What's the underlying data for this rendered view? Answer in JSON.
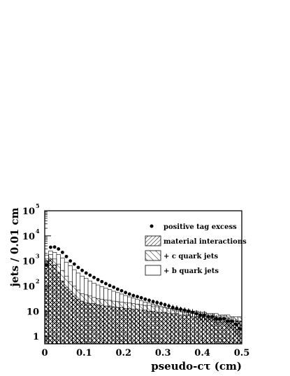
{
  "chart_data": {
    "type": "bar",
    "xlabel": "pseudo-cτ (cm)",
    "ylabel": "jets / 0.01 cm",
    "xlim": [
      0,
      0.5
    ],
    "ylim": [
      0.5,
      100000
    ],
    "y_scale": "log",
    "grid": false,
    "legend_position": "top-right",
    "x_ticks": [
      0,
      0.1,
      0.2,
      0.3,
      0.4,
      0.5
    ],
    "y_ticks": [
      1,
      10,
      100,
      1000,
      10000,
      100000
    ],
    "y_tick_labels": [
      {
        "base": "1",
        "exp": ""
      },
      {
        "base": "10",
        "exp": ""
      },
      {
        "base": "10",
        "exp": "2"
      },
      {
        "base": "10",
        "exp": "3"
      },
      {
        "base": "10",
        "exp": "4"
      },
      {
        "base": "10",
        "exp": "5"
      }
    ],
    "bin_width": 0.01,
    "bins_low_edge": [
      0.0,
      0.01,
      0.02,
      0.03,
      0.04,
      0.05,
      0.06,
      0.07,
      0.08,
      0.09,
      0.1,
      0.11,
      0.12,
      0.13,
      0.14,
      0.15,
      0.16,
      0.17,
      0.18,
      0.19,
      0.2,
      0.21,
      0.22,
      0.23,
      0.24,
      0.25,
      0.26,
      0.27,
      0.28,
      0.29,
      0.3,
      0.31,
      0.32,
      0.33,
      0.34,
      0.35,
      0.36,
      0.37,
      0.38,
      0.39,
      0.4,
      0.41,
      0.42,
      0.43,
      0.44,
      0.45,
      0.46,
      0.47,
      0.48,
      0.49
    ],
    "series": [
      {
        "name": "material interactions",
        "style": "hatch-dense",
        "values": [
          1000,
          1200,
          700,
          350,
          160,
          90,
          60,
          40,
          30,
          25,
          22,
          20,
          20,
          18,
          17,
          16,
          16,
          15,
          14,
          14,
          13,
          13,
          12,
          12,
          11,
          11,
          10,
          10,
          9,
          9,
          9,
          8,
          8,
          8,
          7,
          7,
          7,
          6,
          6,
          6,
          6,
          5,
          5,
          5,
          5,
          4,
          4,
          4,
          4,
          4
        ]
      },
      {
        "name": "+ c quark jets",
        "style": "hatch-sparse",
        "values": [
          1200,
          1800,
          1200,
          750,
          420,
          250,
          150,
          100,
          70,
          50,
          45,
          40,
          35,
          32,
          30,
          28,
          27,
          25,
          24,
          23,
          22,
          21,
          20,
          19,
          18,
          17,
          17,
          16,
          15,
          15,
          14,
          13,
          13,
          12,
          12,
          11,
          11,
          10,
          10,
          9,
          9,
          8,
          8,
          8,
          7,
          7,
          7,
          6,
          6,
          6
        ]
      },
      {
        "name": "+ b quark jets",
        "style": "open",
        "values": [
          1700,
          2500,
          2200,
          1800,
          1300,
          900,
          650,
          450,
          330,
          250,
          200,
          160,
          130,
          110,
          95,
          82,
          72,
          62,
          55,
          48,
          42,
          37,
          33,
          29,
          26,
          23,
          21,
          19,
          17,
          15,
          14,
          13,
          12,
          11,
          10,
          9,
          9,
          8,
          8,
          7,
          7,
          6,
          6,
          6,
          5,
          5,
          5,
          4,
          4,
          4
        ]
      },
      {
        "name": "positive tag excess",
        "style": "points",
        "values": [
          700,
          3500,
          3600,
          3000,
          2200,
          1500,
          1000,
          750,
          550,
          420,
          330,
          270,
          220,
          180,
          150,
          125,
          105,
          90,
          75,
          65,
          55,
          48,
          42,
          38,
          34,
          30,
          27,
          24,
          22,
          20,
          18,
          16,
          14,
          13,
          12,
          11,
          10,
          9,
          8,
          7,
          7,
          6,
          6,
          5,
          5,
          5,
          4,
          4,
          3,
          2
        ],
        "errors": [
          30,
          60,
          60,
          55,
          45,
          40,
          30,
          28,
          23,
          20,
          18,
          16,
          15,
          13,
          12,
          11,
          10,
          9,
          8,
          8,
          7,
          7,
          6,
          6,
          6,
          5,
          5,
          5,
          5,
          4,
          4,
          4,
          4,
          4,
          3,
          3,
          3,
          3,
          3,
          3,
          3,
          2,
          2,
          2,
          2,
          2,
          2,
          2,
          2,
          2
        ]
      }
    ]
  }
}
